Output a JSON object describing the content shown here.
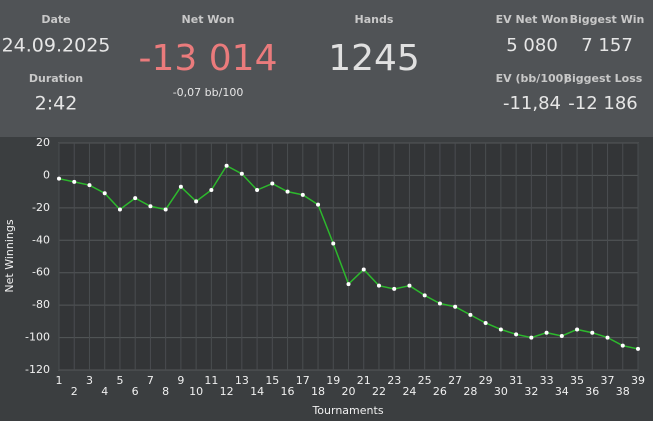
{
  "header": {
    "date_label": "Date",
    "date": "24.09.2025",
    "duration_label": "Duration",
    "duration": "2:42",
    "net_won_label": "Net Won",
    "net_won": "-13 014",
    "net_won_sub": "-0,07 bb/100",
    "hands_label": "Hands",
    "hands": "1245",
    "ev_net_won_label": "EV Net Won",
    "ev_net_won": "5 080",
    "biggest_win_label": "Biggest Win",
    "biggest_win": "7 157",
    "ev_bb_label": "EV (bb/100)",
    "ev_bb": "-11,84",
    "biggest_loss_label": "Biggest Loss",
    "biggest_loss": "-12 186"
  },
  "chart_data": {
    "type": "line",
    "xlabel": "Tournaments",
    "ylabel": "Net Winnings",
    "x": [
      1,
      2,
      3,
      4,
      5,
      6,
      7,
      8,
      9,
      10,
      11,
      12,
      13,
      14,
      15,
      16,
      17,
      18,
      19,
      20,
      21,
      22,
      23,
      24,
      25,
      26,
      27,
      28,
      29,
      30,
      31,
      32,
      33,
      34,
      35,
      36,
      37,
      38,
      39
    ],
    "values": [
      -2,
      -4,
      -6,
      -11,
      -21,
      -14,
      -19,
      -21,
      -7,
      -16,
      -9,
      6,
      1,
      -9,
      -5,
      -10,
      -12,
      -18,
      -42,
      -67,
      -58,
      -68,
      -70,
      -68,
      -74,
      -79,
      -81,
      -86,
      -91,
      -95,
      -98,
      -100,
      -97,
      -99,
      -95,
      -97,
      -100,
      -105,
      -107
    ],
    "color": "#2db82d",
    "xlim": [
      1,
      39
    ],
    "xticks": [
      1,
      2,
      3,
      4,
      5,
      6,
      7,
      8,
      9,
      10,
      11,
      12,
      13,
      14,
      15,
      16,
      17,
      18,
      19,
      20,
      21,
      22,
      23,
      24,
      25,
      26,
      27,
      28,
      29,
      30,
      31,
      32,
      33,
      34,
      35,
      36,
      37,
      38,
      39
    ],
    "ylim": [
      -120,
      20
    ],
    "yticks": [
      -120,
      -100,
      -80,
      -60,
      -40,
      -20,
      0,
      20
    ],
    "grid": true
  }
}
